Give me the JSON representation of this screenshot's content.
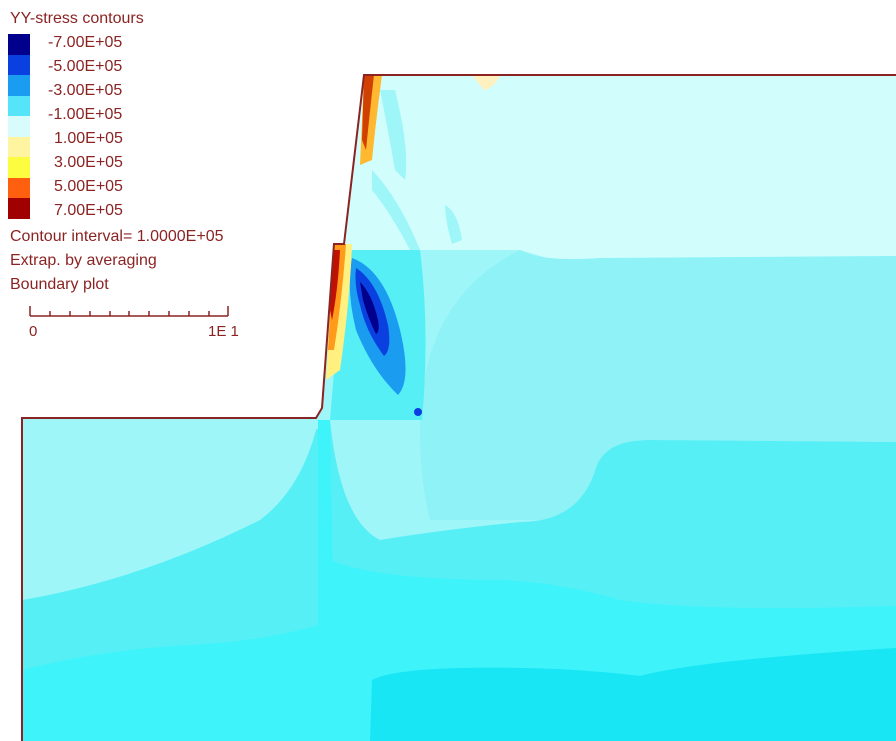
{
  "legend": {
    "title": "YY-stress contours",
    "levels": [
      {
        "label": "-7.00E+05",
        "color": "#00008c"
      },
      {
        "label": "-5.00E+05",
        "color": "#0a3fe0"
      },
      {
        "label": "-3.00E+05",
        "color": "#1a9cf0"
      },
      {
        "label": "-1.00E+05",
        "color": "#56e4f8"
      },
      {
        "label": "1.00E+05",
        "color": "#d8fcfc"
      },
      {
        "label": "3.00E+05",
        "color": "#fff4a0"
      },
      {
        "label": "5.00E+05",
        "color": "#ff9a1a"
      },
      {
        "label": "7.00E+05",
        "color": "#a00000"
      }
    ],
    "extra_swatches": [
      "#fcfc40",
      "#ff6010"
    ],
    "contour_interval": "Contour interval=  1.0000E+05",
    "extrapolation": "Extrap. by averaging",
    "plot_mode": "Boundary plot",
    "scale": {
      "min_label": "0",
      "max_label": "1E  1"
    }
  },
  "colors": {
    "boundary": "#8b2323",
    "text": "#8b2323",
    "fill_pale": "#d2fdfd",
    "fill_light": "#9ff6f8",
    "fill_mid": "#57eff6",
    "fill_cyan": "#3ef3fa",
    "fill_deep": "#18e6f4"
  }
}
